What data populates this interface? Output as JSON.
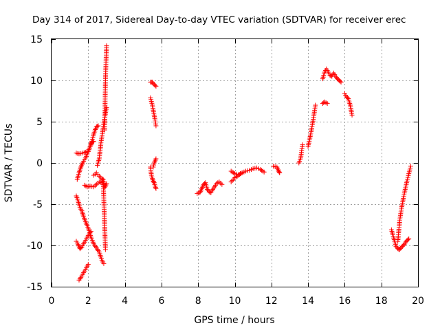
{
  "chart_data": {
    "type": "scatter",
    "title": "Day 314 of 2017, Sidereal Day-to-day VTEC variation (SDTVAR) for receiver erec",
    "xlabel": "GPS time / hours",
    "ylabel": "SDTVAR / TECUs",
    "xlim": [
      0,
      20
    ],
    "ylim": [
      -15,
      15
    ],
    "xticks": [
      "0",
      "2",
      "4",
      "6",
      "8",
      "10",
      "12",
      "14",
      "16",
      "18",
      "20"
    ],
    "yticks": [
      "-15",
      "-10",
      "-5",
      "0",
      "5",
      "10",
      "15"
    ],
    "grid": true,
    "marker": "+",
    "color": "#ff0000",
    "series": [
      {
        "name": "SDTVAR",
        "segments": [
          [
            [
              1.35,
              1.2
            ],
            [
              1.5,
              1.1
            ],
            [
              1.7,
              1.2
            ],
            [
              1.85,
              1.3
            ],
            [
              2.0,
              1.4
            ],
            [
              2.15,
              2.2
            ],
            [
              2.3,
              3.5
            ],
            [
              2.45,
              4.4
            ],
            [
              2.55,
              4.5
            ]
          ],
          [
            [
              1.4,
              -2.0
            ],
            [
              1.5,
              -1.2
            ],
            [
              1.6,
              -0.5
            ],
            [
              1.7,
              0.0
            ],
            [
              1.8,
              0.4
            ],
            [
              1.9,
              0.8
            ],
            [
              2.0,
              1.4
            ],
            [
              2.1,
              2.0
            ],
            [
              2.2,
              2.5
            ],
            [
              2.3,
              2.6
            ]
          ],
          [
            [
              1.8,
              -2.7
            ],
            [
              1.95,
              -2.9
            ],
            [
              2.1,
              -2.8
            ],
            [
              2.3,
              -2.9
            ],
            [
              2.45,
              -2.6
            ],
            [
              2.6,
              -2.3
            ],
            [
              2.75,
              -2.4
            ]
          ],
          [
            [
              2.3,
              -1.5
            ],
            [
              2.45,
              -1.2
            ],
            [
              2.6,
              -1.6
            ],
            [
              2.75,
              -1.9
            ],
            [
              2.9,
              -3.0
            ],
            [
              3.0,
              -2.5
            ]
          ],
          [
            [
              2.5,
              -0.3
            ],
            [
              2.6,
              0.5
            ],
            [
              2.7,
              2.5
            ],
            [
              2.8,
              4.0
            ],
            [
              2.9,
              5.5
            ],
            [
              3.0,
              6.7
            ]
          ],
          [
            [
              1.35,
              -4.0
            ],
            [
              1.45,
              -4.6
            ],
            [
              1.55,
              -5.4
            ],
            [
              1.65,
              -5.8
            ],
            [
              1.75,
              -6.5
            ],
            [
              1.85,
              -7.1
            ],
            [
              1.95,
              -7.6
            ],
            [
              2.05,
              -8.2
            ],
            [
              2.15,
              -9.0
            ],
            [
              2.3,
              -9.8
            ],
            [
              2.45,
              -10.3
            ],
            [
              2.6,
              -10.8
            ],
            [
              2.75,
              -11.8
            ],
            [
              2.85,
              -12.2
            ]
          ],
          [
            [
              1.35,
              -9.5
            ],
            [
              1.45,
              -9.9
            ],
            [
              1.55,
              -10.4
            ],
            [
              1.65,
              -10.2
            ],
            [
              1.75,
              -9.8
            ],
            [
              1.85,
              -9.4
            ],
            [
              1.95,
              -9.0
            ],
            [
              2.05,
              -8.6
            ],
            [
              2.15,
              -8.3
            ]
          ],
          [
            [
              1.5,
              -14.2
            ],
            [
              1.6,
              -13.9
            ],
            [
              1.7,
              -13.5
            ],
            [
              1.8,
              -13.1
            ],
            [
              1.9,
              -12.7
            ],
            [
              2.0,
              -12.3
            ]
          ],
          [
            [
              2.82,
              -2.0
            ],
            [
              2.84,
              -3.5
            ],
            [
              2.86,
              -5.0
            ],
            [
              2.88,
              -6.3
            ],
            [
              2.9,
              -7.6
            ],
            [
              2.92,
              -9.0
            ],
            [
              2.94,
              -10.5
            ]
          ],
          [
            [
              2.9,
              4.0
            ],
            [
              2.92,
              7.0
            ],
            [
              2.94,
              10.0
            ],
            [
              2.96,
              11.5
            ],
            [
              2.98,
              12.8
            ],
            [
              3.0,
              14.2
            ]
          ],
          [
            [
              5.4,
              7.9
            ],
            [
              5.5,
              7.0
            ],
            [
              5.6,
              5.8
            ],
            [
              5.65,
              5.2
            ],
            [
              5.7,
              4.5
            ]
          ],
          [
            [
              5.4,
              9.8
            ],
            [
              5.5,
              9.8
            ],
            [
              5.6,
              9.5
            ],
            [
              5.7,
              9.3
            ]
          ],
          [
            [
              5.4,
              -0.5
            ],
            [
              5.45,
              -1.5
            ],
            [
              5.5,
              -1.9
            ],
            [
              5.55,
              -2.2
            ],
            [
              5.6,
              -2.4
            ],
            [
              5.65,
              -2.8
            ],
            [
              5.7,
              -3.1
            ]
          ],
          [
            [
              5.55,
              -0.5
            ],
            [
              5.6,
              0.0
            ],
            [
              5.7,
              0.5
            ]
          ],
          [
            [
              7.95,
              -3.7
            ],
            [
              8.1,
              -3.6
            ],
            [
              8.2,
              -3.1
            ],
            [
              8.3,
              -2.6
            ],
            [
              8.4,
              -2.4
            ],
            [
              8.5,
              -3.2
            ],
            [
              8.6,
              -3.5
            ],
            [
              8.7,
              -3.6
            ],
            [
              8.8,
              -3.2
            ],
            [
              8.9,
              -2.9
            ],
            [
              9.0,
              -2.5
            ],
            [
              9.15,
              -2.3
            ],
            [
              9.3,
              -2.6
            ]
          ],
          [
            [
              9.8,
              -2.3
            ],
            [
              10.0,
              -1.8
            ],
            [
              10.2,
              -1.5
            ],
            [
              10.4,
              -1.2
            ],
            [
              10.6,
              -1.0
            ],
            [
              10.8,
              -0.9
            ],
            [
              11.0,
              -0.7
            ],
            [
              11.2,
              -0.6
            ],
            [
              11.4,
              -0.8
            ],
            [
              11.6,
              -1.1
            ]
          ],
          [
            [
              9.8,
              -1.0
            ],
            [
              10.0,
              -1.3
            ],
            [
              10.2,
              -1.4
            ],
            [
              10.4,
              -1.2
            ]
          ],
          [
            [
              12.1,
              -0.4
            ],
            [
              12.3,
              -0.5
            ],
            [
              12.4,
              -1.0
            ],
            [
              12.45,
              -1.2
            ]
          ],
          [
            [
              13.5,
              0.0
            ],
            [
              13.6,
              0.6
            ],
            [
              13.65,
              1.5
            ],
            [
              13.7,
              2.2
            ]
          ],
          [
            [
              14.0,
              2.0
            ],
            [
              14.1,
              3.0
            ],
            [
              14.2,
              4.2
            ],
            [
              14.3,
              5.5
            ],
            [
              14.4,
              7.0
            ]
          ],
          [
            [
              14.8,
              7.2
            ],
            [
              14.9,
              7.4
            ],
            [
              15.05,
              7.2
            ]
          ],
          [
            [
              14.8,
              10.2
            ],
            [
              14.9,
              11.0
            ],
            [
              15.0,
              11.4
            ],
            [
              15.1,
              11.0
            ],
            [
              15.2,
              10.6
            ],
            [
              15.3,
              10.5
            ],
            [
              15.4,
              10.9
            ],
            [
              15.5,
              10.5
            ],
            [
              15.6,
              10.2
            ],
            [
              15.7,
              10.0
            ],
            [
              15.8,
              9.8
            ]
          ],
          [
            [
              16.0,
              8.4
            ],
            [
              16.1,
              8.0
            ],
            [
              16.2,
              7.8
            ],
            [
              16.3,
              7.0
            ],
            [
              16.35,
              6.4
            ],
            [
              16.4,
              5.8
            ]
          ],
          [
            [
              18.55,
              -8.1
            ],
            [
              18.7,
              -9.3
            ],
            [
              18.8,
              -10.1
            ],
            [
              18.9,
              -10.4
            ],
            [
              19.0,
              -10.5
            ],
            [
              19.1,
              -10.2
            ],
            [
              19.2,
              -10.0
            ],
            [
              19.3,
              -9.7
            ],
            [
              19.4,
              -9.4
            ],
            [
              19.5,
              -9.2
            ]
          ],
          [
            [
              18.9,
              -9.5
            ],
            [
              19.0,
              -7.0
            ],
            [
              19.1,
              -5.5
            ],
            [
              19.2,
              -4.3
            ],
            [
              19.3,
              -3.2
            ],
            [
              19.4,
              -2.2
            ],
            [
              19.5,
              -1.3
            ],
            [
              19.6,
              -0.4
            ]
          ]
        ]
      }
    ]
  }
}
